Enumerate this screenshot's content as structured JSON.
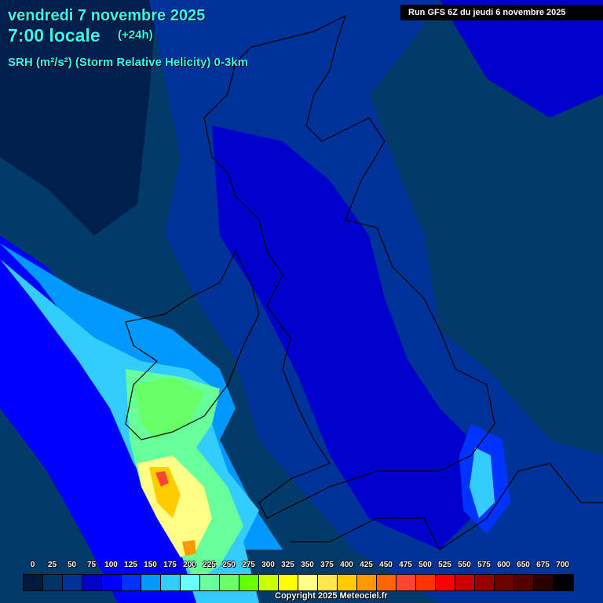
{
  "header": {
    "date": "vendredi 7 novembre 2025",
    "time": "7:00 locale",
    "lead": "(+24h)",
    "parameter": "SRH (m²/s²) (Storm Relative Helicity) 0-3km",
    "run": "Run GFS 6Z du jeudi 6 novembre 2025"
  },
  "legend": {
    "labels": [
      "0",
      "25",
      "50",
      "75",
      "100",
      "125",
      "150",
      "175",
      "200",
      "225",
      "250",
      "275",
      "300",
      "325",
      "350",
      "375",
      "400",
      "425",
      "450",
      "475",
      "500",
      "525",
      "550",
      "575",
      "600",
      "650",
      "675",
      "700"
    ],
    "colors": [
      "#001a40",
      "#003366",
      "#003399",
      "#0000cc",
      "#0000ff",
      "#0033ff",
      "#0099ff",
      "#33ccff",
      "#66ffff",
      "#66ff99",
      "#66ff66",
      "#66ff00",
      "#ccff00",
      "#ffff00",
      "#ffff88",
      "#ffe54d",
      "#ffcc00",
      "#ff9900",
      "#ff6600",
      "#ff4433",
      "#ff3300",
      "#ff0000",
      "#cc0000",
      "#990000",
      "#6e0000",
      "#550000",
      "#2a0000",
      "#000000"
    ]
  },
  "footer": {
    "copyright": "Copyright 2025 Meteociel.fr"
  }
}
